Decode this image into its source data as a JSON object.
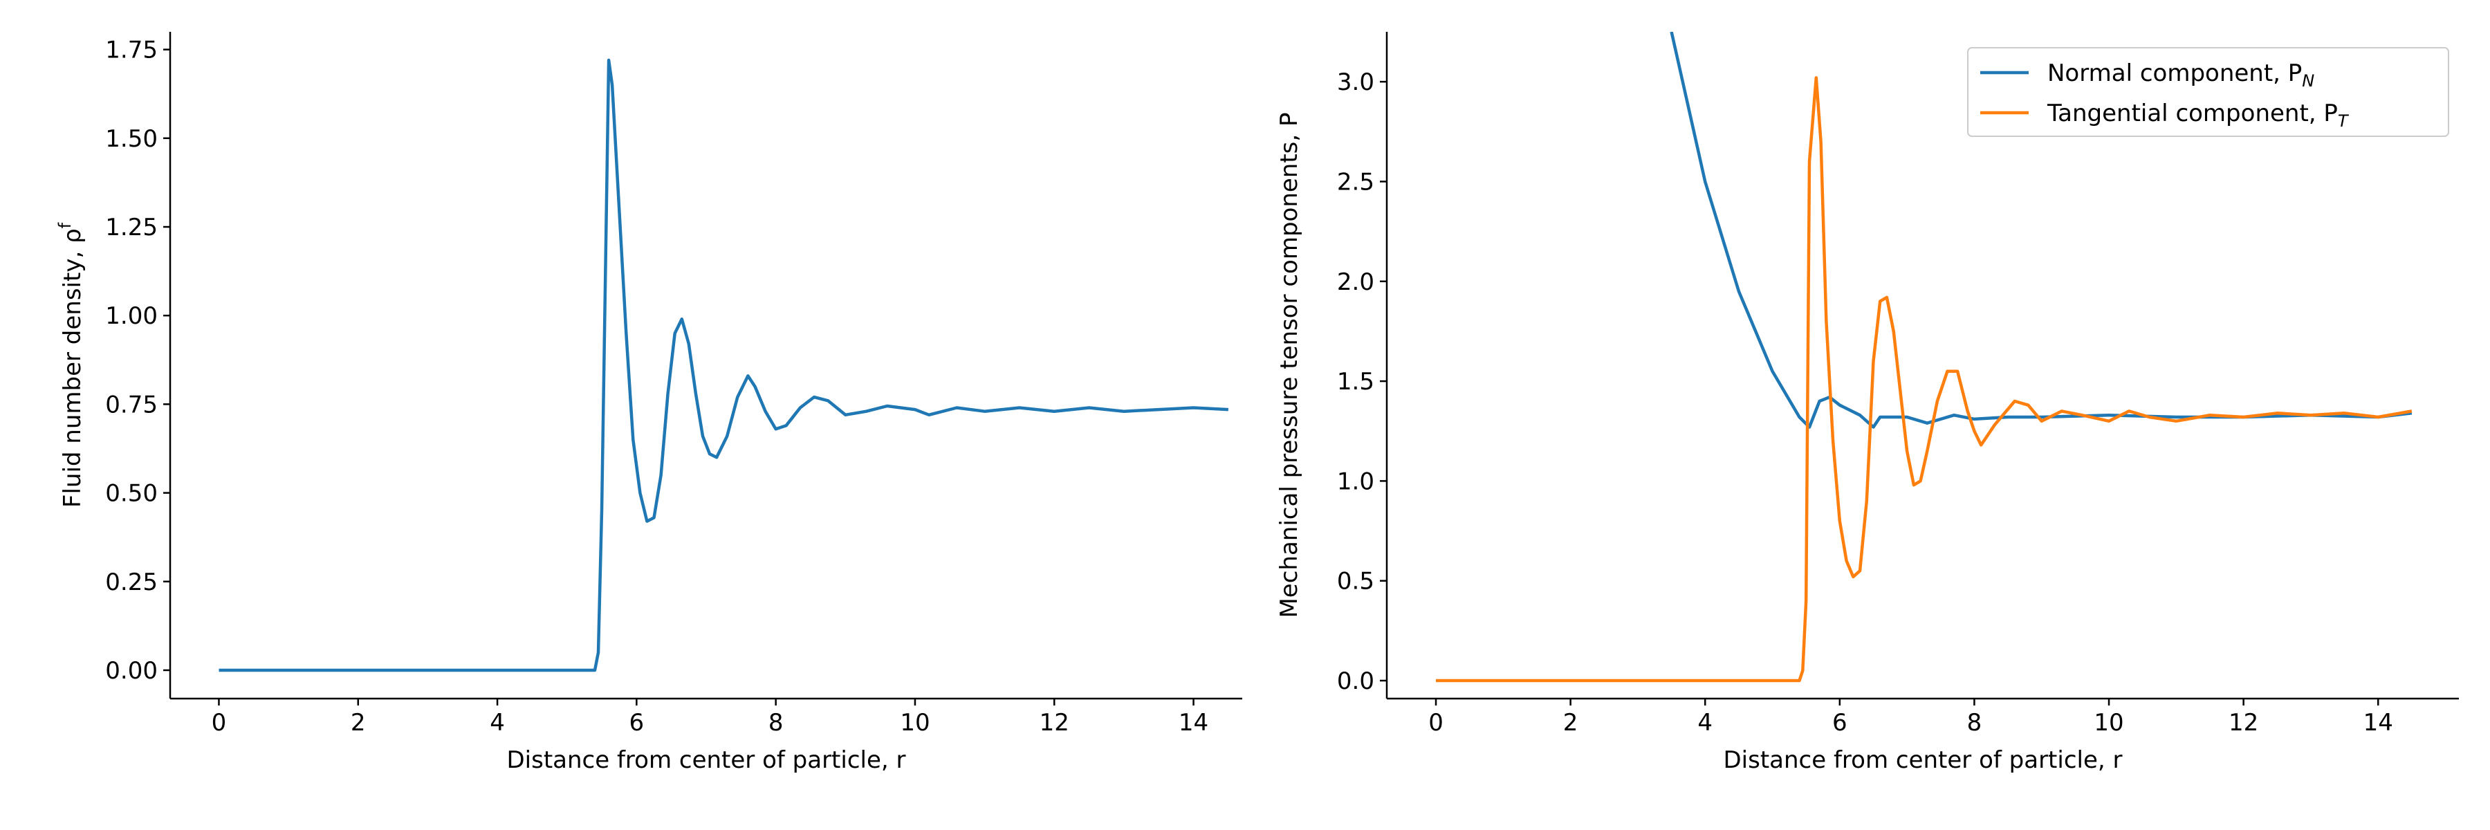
{
  "chart_data": [
    {
      "type": "line",
      "xlabel": "Distance from center of particle, r",
      "ylabel": "Fluid number density, ρ",
      "ylabel_sup": "f",
      "xlim": [
        -0.7,
        14.7
      ],
      "ylim": [
        -0.08,
        1.8
      ],
      "xticks": [
        0,
        2,
        4,
        6,
        8,
        10,
        12,
        14
      ],
      "yticks": [
        {
          "value": 0,
          "label": "0.00"
        },
        0.25,
        {
          "value": 0.5,
          "label": "0.50"
        },
        0.75,
        {
          "value": 1,
          "label": "1.00"
        },
        1.25,
        {
          "value": 1.5,
          "label": "1.50"
        },
        1.75
      ],
      "series": [
        {
          "color": "#1f77b4",
          "x": [
            0,
            5.4,
            5.45,
            5.5,
            5.6,
            5.65,
            5.75,
            5.85,
            5.95,
            6.05,
            6.15,
            6.25,
            6.35,
            6.45,
            6.55,
            6.65,
            6.75,
            6.85,
            6.95,
            7.05,
            7.15,
            7.3,
            7.45,
            7.6,
            7.7,
            7.85,
            8.0,
            8.15,
            8.35,
            8.55,
            8.75,
            9.0,
            9.3,
            9.6,
            10.0,
            10.2,
            10.6,
            11.0,
            11.5,
            12.0,
            12.5,
            13.0,
            13.5,
            14.0,
            14.5
          ],
          "values": [
            0,
            0,
            0.05,
            0.45,
            1.72,
            1.65,
            1.3,
            0.95,
            0.65,
            0.5,
            0.42,
            0.43,
            0.55,
            0.78,
            0.95,
            0.99,
            0.92,
            0.78,
            0.66,
            0.61,
            0.6,
            0.66,
            0.77,
            0.83,
            0.8,
            0.73,
            0.68,
            0.69,
            0.74,
            0.77,
            0.76,
            0.72,
            0.73,
            0.745,
            0.735,
            0.72,
            0.74,
            0.73,
            0.74,
            0.73,
            0.74,
            0.73,
            0.735,
            0.74,
            0.735
          ]
        }
      ]
    },
    {
      "type": "line",
      "xlabel": "Distance from center of particle, r",
      "ylabel": "Mechanical pressure tensor components, P",
      "xlim": [
        -0.73,
        15.2
      ],
      "ylim": [
        -0.09,
        3.25
      ],
      "xticks": [
        0,
        2,
        4,
        6,
        8,
        10,
        12,
        14
      ],
      "yticks": [
        {
          "value": 0,
          "label": "0.0"
        },
        0.5,
        {
          "value": 1,
          "label": "1.0"
        },
        1.5,
        {
          "value": 2,
          "label": "2.0"
        },
        2.5,
        {
          "value": 3,
          "label": "3.0"
        }
      ],
      "legend": "upper right",
      "series": [
        {
          "name": "Normal component, P",
          "subscript": "N",
          "color": "#1f77b4",
          "x": [
            3.5,
            4.0,
            4.5,
            5.0,
            5.4,
            5.55,
            5.7,
            5.85,
            6.0,
            6.3,
            6.5,
            6.6,
            7.0,
            7.3,
            7.7,
            8.0,
            8.5,
            9.0,
            10.0,
            11.0,
            12.0,
            13.0,
            14.0,
            14.5
          ],
          "values": [
            3.25,
            2.5,
            1.95,
            1.55,
            1.32,
            1.27,
            1.4,
            1.42,
            1.38,
            1.33,
            1.27,
            1.32,
            1.32,
            1.29,
            1.33,
            1.31,
            1.32,
            1.32,
            1.33,
            1.32,
            1.32,
            1.33,
            1.32,
            1.34
          ]
        },
        {
          "name": "Tangential component, P",
          "subscript": "T",
          "color": "#ff7f0e",
          "x": [
            0,
            5.4,
            5.45,
            5.5,
            5.55,
            5.65,
            5.72,
            5.8,
            5.9,
            6.0,
            6.1,
            6.2,
            6.3,
            6.4,
            6.5,
            6.6,
            6.7,
            6.8,
            6.9,
            7.0,
            7.1,
            7.2,
            7.3,
            7.45,
            7.6,
            7.75,
            7.9,
            8.0,
            8.1,
            8.3,
            8.6,
            8.8,
            9.0,
            9.3,
            9.6,
            10.0,
            10.3,
            10.6,
            11.0,
            11.5,
            12.0,
            12.5,
            13.0,
            13.5,
            14.0,
            14.5
          ],
          "values": [
            0,
            0,
            0.05,
            0.4,
            2.6,
            3.02,
            2.7,
            1.8,
            1.2,
            0.8,
            0.6,
            0.52,
            0.55,
            0.9,
            1.6,
            1.9,
            1.92,
            1.75,
            1.45,
            1.15,
            0.98,
            1.0,
            1.15,
            1.4,
            1.55,
            1.55,
            1.35,
            1.25,
            1.18,
            1.28,
            1.4,
            1.38,
            1.3,
            1.35,
            1.33,
            1.3,
            1.35,
            1.32,
            1.3,
            1.33,
            1.32,
            1.34,
            1.33,
            1.34,
            1.32,
            1.35
          ]
        }
      ]
    }
  ]
}
